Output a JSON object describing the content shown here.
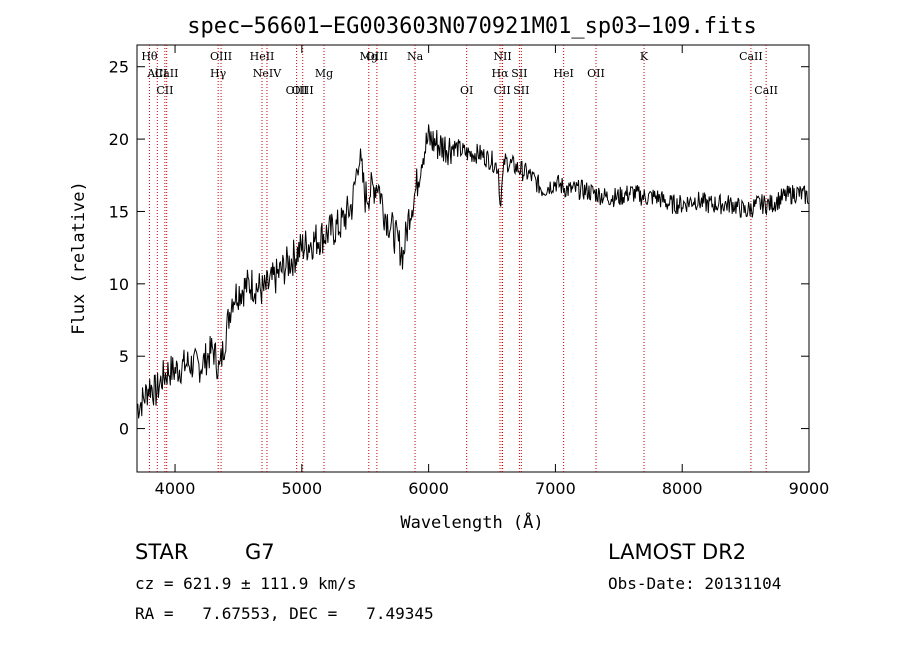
{
  "chart_data": {
    "type": "line",
    "title": "spec−56601−EG003603N070921M01_sp03−109.fits",
    "xlabel": "Wavelength (Å)",
    "ylabel": "Flux (relative)",
    "xlim": [
      3700,
      9000
    ],
    "ylim": [
      -3,
      26.5
    ],
    "x_ticks": [
      4000,
      5000,
      6000,
      7000,
      8000,
      9000
    ],
    "y_ticks": [
      0,
      5,
      10,
      15,
      20,
      25
    ],
    "grid": false,
    "line_color": "#000000",
    "marker_color": "#cc0000",
    "series": [
      {
        "x": [
          3700,
          3750,
          3800,
          3850,
          3900,
          3950,
          4000,
          4100,
          4200,
          4300,
          4350,
          4400,
          4450,
          4500,
          4600,
          4700,
          4800,
          4850,
          4900,
          5000,
          5100,
          5200,
          5300,
          5400,
          5450,
          5500,
          5600,
          5650,
          5700,
          5750,
          5800,
          5850,
          5900,
          5950,
          6000,
          6100,
          6200,
          6300,
          6400,
          6500,
          6550,
          6563,
          6600,
          6700,
          6800,
          6900,
          7000,
          7100,
          7200,
          7300,
          7400,
          7500,
          7600,
          7700,
          7800,
          7900,
          8000,
          8100,
          8200,
          8300,
          8400,
          8500,
          8600,
          8700,
          8800,
          8900,
          9000
        ],
        "values": [
          1.5,
          2.0,
          3.0,
          2.5,
          3.5,
          4.0,
          4.0,
          4.5,
          4.3,
          5.5,
          4.0,
          6.5,
          9.0,
          9.5,
          10.0,
          9.5,
          10.5,
          11.0,
          11.5,
          12.5,
          13.0,
          13.5,
          14.0,
          15.5,
          19.0,
          16.0,
          17.0,
          15.0,
          14.0,
          13.0,
          12.0,
          15.0,
          16.5,
          19.0,
          20.0,
          19.5,
          19.5,
          19.0,
          19.0,
          18.5,
          18.0,
          15.5,
          18.5,
          18.0,
          17.5,
          16.5,
          17.0,
          16.5,
          16.5,
          16.3,
          16.0,
          16.0,
          16.3,
          16.0,
          16.0,
          15.5,
          15.5,
          15.8,
          15.5,
          15.5,
          15.5,
          15.0,
          15.5,
          15.5,
          16.0,
          16.3,
          16.0
        ]
      }
    ],
    "lines": [
      {
        "name": "Hθ",
        "x": 3798,
        "row": 1
      },
      {
        "name": "AlII",
        "x": 3860,
        "row": 2
      },
      {
        "name": "CaII",
        "x": 3934,
        "row": 2
      },
      {
        "name": "CII",
        "x": 3920,
        "row": 3
      },
      {
        "name": "OIII",
        "x": 4363,
        "row": 1
      },
      {
        "name": "Hγ",
        "x": 4340,
        "row": 2
      },
      {
        "name": "HeII",
        "x": 4686,
        "row": 1
      },
      {
        "name": "NeIV",
        "x": 4725,
        "row": 2
      },
      {
        "name": "OIII",
        "x": 4959,
        "row": 3
      },
      {
        "name": "OIII",
        "x": 5007,
        "row": 3
      },
      {
        "name": "Mg",
        "x": 5175,
        "row": 2
      },
      {
        "name": "Mg",
        "x": 5528,
        "row": 1
      },
      {
        "name": "OIII",
        "x": 5592,
        "row": 1
      },
      {
        "name": "Na",
        "x": 5893,
        "row": 1
      },
      {
        "name": "OI",
        "x": 6300,
        "row": 3
      },
      {
        "name": "NII",
        "x": 6583,
        "row": 1
      },
      {
        "name": "Hα",
        "x": 6563,
        "row": 2
      },
      {
        "name": "SII",
        "x": 6716,
        "row": 2
      },
      {
        "name": "SII",
        "x": 6731,
        "row": 3
      },
      {
        "name": "CII",
        "x": 6580,
        "row": 3
      },
      {
        "name": "OII",
        "x": 7320,
        "row": 2
      },
      {
        "name": "HeI",
        "x": 7065,
        "row": 2
      },
      {
        "name": "K",
        "x": 7699,
        "row": 1
      },
      {
        "name": "CaII",
        "x": 8542,
        "row": 1
      },
      {
        "name": "CaII",
        "x": 8662,
        "row": 3
      }
    ]
  },
  "info": {
    "obj_class": "STAR",
    "subclass": "G7",
    "survey": "LAMOST DR2",
    "cz": "cz = 621.9 ± 111.9 km/s",
    "obs_date": "Obs-Date: 20131104",
    "coords": "RA =   7.67553, DEC =   7.49345"
  }
}
